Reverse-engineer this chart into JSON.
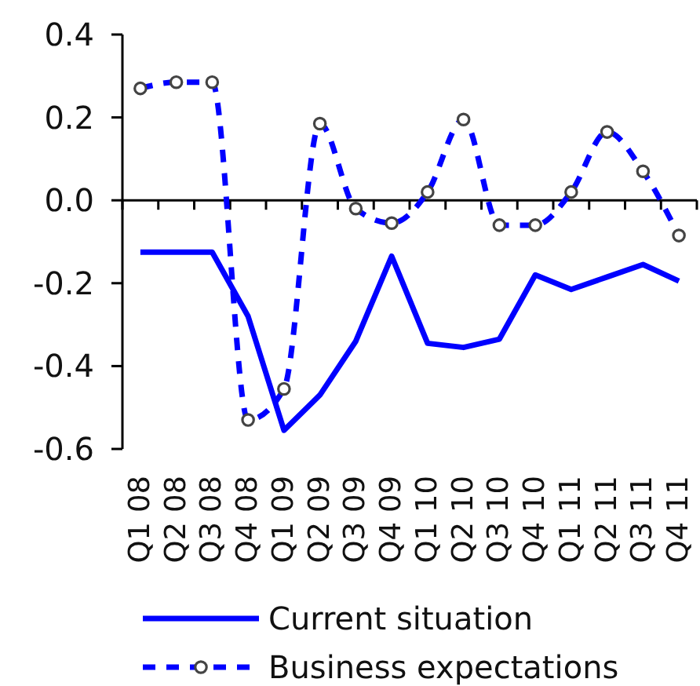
{
  "chart_data": {
    "type": "line",
    "categories": [
      "Q1 08",
      "Q2 08",
      "Q3 08",
      "Q4 08",
      "Q1 09",
      "Q2 09",
      "Q3 09",
      "Q4 09",
      "Q1 10",
      "Q2 10",
      "Q3 10",
      "Q4 10",
      "Q1 11",
      "Q2 11",
      "Q3 11",
      "Q4 11"
    ],
    "series": [
      {
        "name": "Current situation",
        "color": "#0000ff",
        "line_style": "solid",
        "marker": "none",
        "values": [
          -0.125,
          -0.125,
          -0.125,
          -0.28,
          -0.555,
          -0.47,
          -0.34,
          -0.135,
          -0.345,
          -0.355,
          -0.335,
          -0.18,
          -0.215,
          -0.185,
          -0.155,
          -0.195
        ]
      },
      {
        "name": "Business expectations",
        "color": "#0000ff",
        "line_style": "dashed",
        "marker": "circle",
        "values": [
          0.27,
          0.285,
          0.285,
          -0.53,
          -0.455,
          0.185,
          -0.02,
          -0.055,
          0.02,
          0.195,
          -0.06,
          -0.06,
          0.02,
          0.165,
          0.07,
          -0.085
        ]
      }
    ],
    "ylim": [
      -0.6,
      0.4
    ],
    "yticks": [
      0.4,
      0.2,
      {
        "value": 0,
        "label": "0.0"
      },
      -0.2,
      -0.4,
      -0.6
    ],
    "legend": "bottom"
  }
}
